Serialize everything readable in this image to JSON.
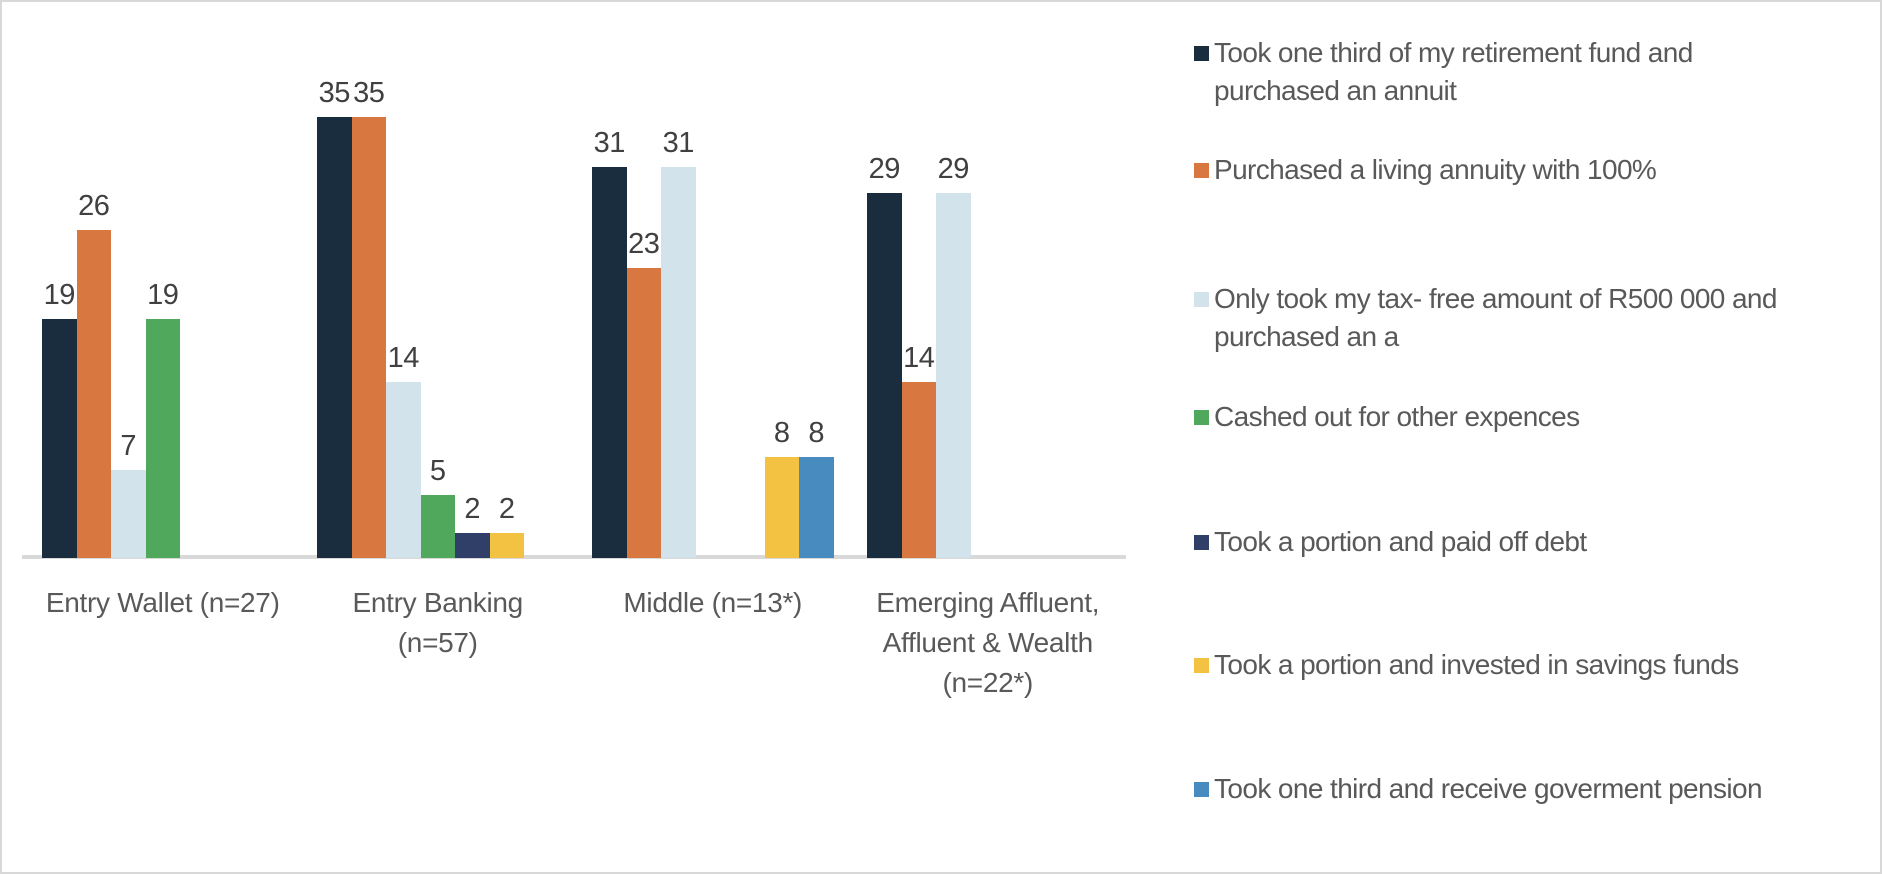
{
  "chart_data": {
    "type": "bar",
    "title": "",
    "xlabel": "",
    "ylabel": "",
    "ylim": [
      0,
      37
    ],
    "grid": false,
    "legend_position": "right",
    "value_labels": "shown above each non-zero bar",
    "axis_line_color": "#d9d9d9",
    "value_label_color": "#404040",
    "category_label_color": "#595959",
    "legend_text_color": "#595959",
    "categories": [
      "Entry Wallet (n=27)",
      "Entry Banking (n=57)",
      "Middle (n=13*)",
      "Emerging Affluent, Affluent & Wealth (n=22*)"
    ],
    "category_label_lines": [
      [
        "Entry Wallet (n=27)"
      ],
      [
        "Entry Banking",
        "(n=57)"
      ],
      [
        "Middle (n=13*)"
      ],
      [
        "Emerging Affluent,",
        "Affluent & Wealth",
        "(n=22*)"
      ]
    ],
    "series": [
      {
        "name": "Took one third of my retirement fund and purchased an annuit",
        "legend_lines": [
          "Took one third of my retirement fund and",
          "purchased an annuit"
        ],
        "color": "#1a2d3e",
        "values": [
          19,
          35,
          31,
          29
        ]
      },
      {
        "name": "Purchased a living annuity with 100%",
        "legend_lines": [
          "Purchased a living annuity with 100%"
        ],
        "color": "#d87840",
        "values": [
          26,
          35,
          23,
          14
        ]
      },
      {
        "name": "Only took my tax- free amount of R500 000 and purchased an a",
        "legend_lines": [
          "Only took my tax- free amount of R500 000 and",
          "purchased an a"
        ],
        "color": "#d3e3eb",
        "values": [
          7,
          14,
          31,
          29
        ]
      },
      {
        "name": "Cashed out for other expences",
        "legend_lines": [
          "Cashed out for other expences"
        ],
        "color": "#4fa85c",
        "values": [
          19,
          5,
          0,
          0
        ]
      },
      {
        "name": "Took a portion and paid off debt",
        "legend_lines": [
          "Took a portion and paid off debt"
        ],
        "color": "#2f3f68",
        "values": [
          0,
          2,
          0,
          0
        ]
      },
      {
        "name": "Took a portion and invested in savings funds",
        "legend_lines": [
          "Took a portion and invested in savings funds"
        ],
        "color": "#f3c243",
        "values": [
          0,
          2,
          8,
          0
        ]
      },
      {
        "name": "Took one third and receive goverment pension",
        "legend_lines": [
          "Took one third and receive goverment pension"
        ],
        "color": "#488cbf",
        "values": [
          0,
          0,
          8,
          0
        ]
      }
    ]
  }
}
